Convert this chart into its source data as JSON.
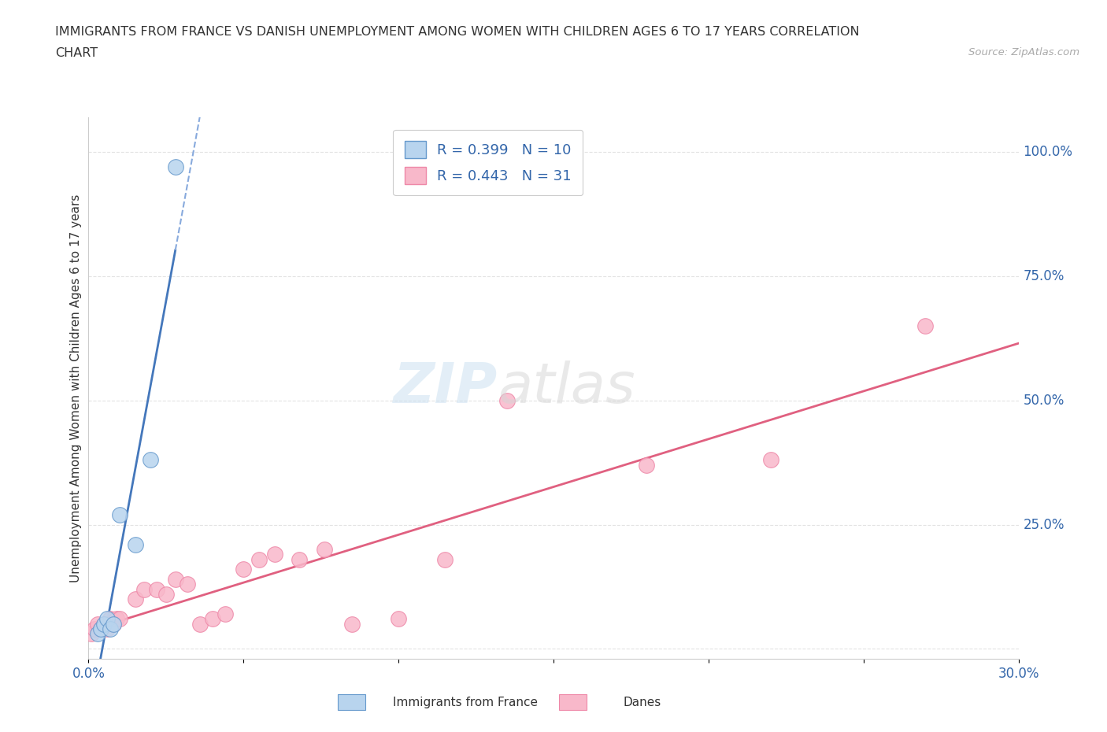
{
  "title_line1": "IMMIGRANTS FROM FRANCE VS DANISH UNEMPLOYMENT AMONG WOMEN WITH CHILDREN AGES 6 TO 17 YEARS CORRELATION",
  "title_line2": "CHART",
  "source": "Source: ZipAtlas.com",
  "ylabel": "Unemployment Among Women with Children Ages 6 to 17 years",
  "xlim": [
    0.0,
    0.3
  ],
  "ylim": [
    -0.02,
    1.07
  ],
  "xticks": [
    0.0,
    0.05,
    0.1,
    0.15,
    0.2,
    0.25,
    0.3
  ],
  "xticklabels": [
    "0.0%",
    "",
    "",
    "",
    "",
    "",
    "30.0%"
  ],
  "yticks_right": [
    0.0,
    0.25,
    0.5,
    0.75,
    1.0
  ],
  "yticklabels_right": [
    "",
    "25.0%",
    "50.0%",
    "75.0%",
    "100.0%"
  ],
  "legend_r1": "R = 0.399   N = 10",
  "legend_r2": "R = 0.443   N = 31",
  "color_france": "#b8d4ee",
  "color_danes": "#f8b8ca",
  "color_france_edge": "#6699cc",
  "color_danes_edge": "#ee88a8",
  "color_france_line": "#4477bb",
  "color_danes_line": "#e06080",
  "color_france_dash": "#88aadd",
  "france_x": [
    0.003,
    0.004,
    0.005,
    0.006,
    0.007,
    0.008,
    0.01,
    0.015,
    0.02,
    0.028
  ],
  "france_y": [
    0.03,
    0.04,
    0.05,
    0.06,
    0.04,
    0.05,
    0.27,
    0.21,
    0.38,
    0.97
  ],
  "danes_x": [
    0.001,
    0.002,
    0.003,
    0.004,
    0.005,
    0.006,
    0.007,
    0.008,
    0.009,
    0.01,
    0.015,
    0.018,
    0.022,
    0.025,
    0.028,
    0.032,
    0.036,
    0.04,
    0.044,
    0.05,
    0.055,
    0.06,
    0.068,
    0.076,
    0.085,
    0.1,
    0.115,
    0.135,
    0.18,
    0.22,
    0.27
  ],
  "danes_y": [
    0.03,
    0.04,
    0.05,
    0.04,
    0.05,
    0.04,
    0.06,
    0.05,
    0.06,
    0.06,
    0.1,
    0.12,
    0.12,
    0.11,
    0.14,
    0.13,
    0.05,
    0.06,
    0.07,
    0.16,
    0.18,
    0.19,
    0.18,
    0.2,
    0.05,
    0.06,
    0.18,
    0.5,
    0.37,
    0.38,
    0.65
  ],
  "background_color": "#ffffff",
  "grid_color": "#dddddd"
}
